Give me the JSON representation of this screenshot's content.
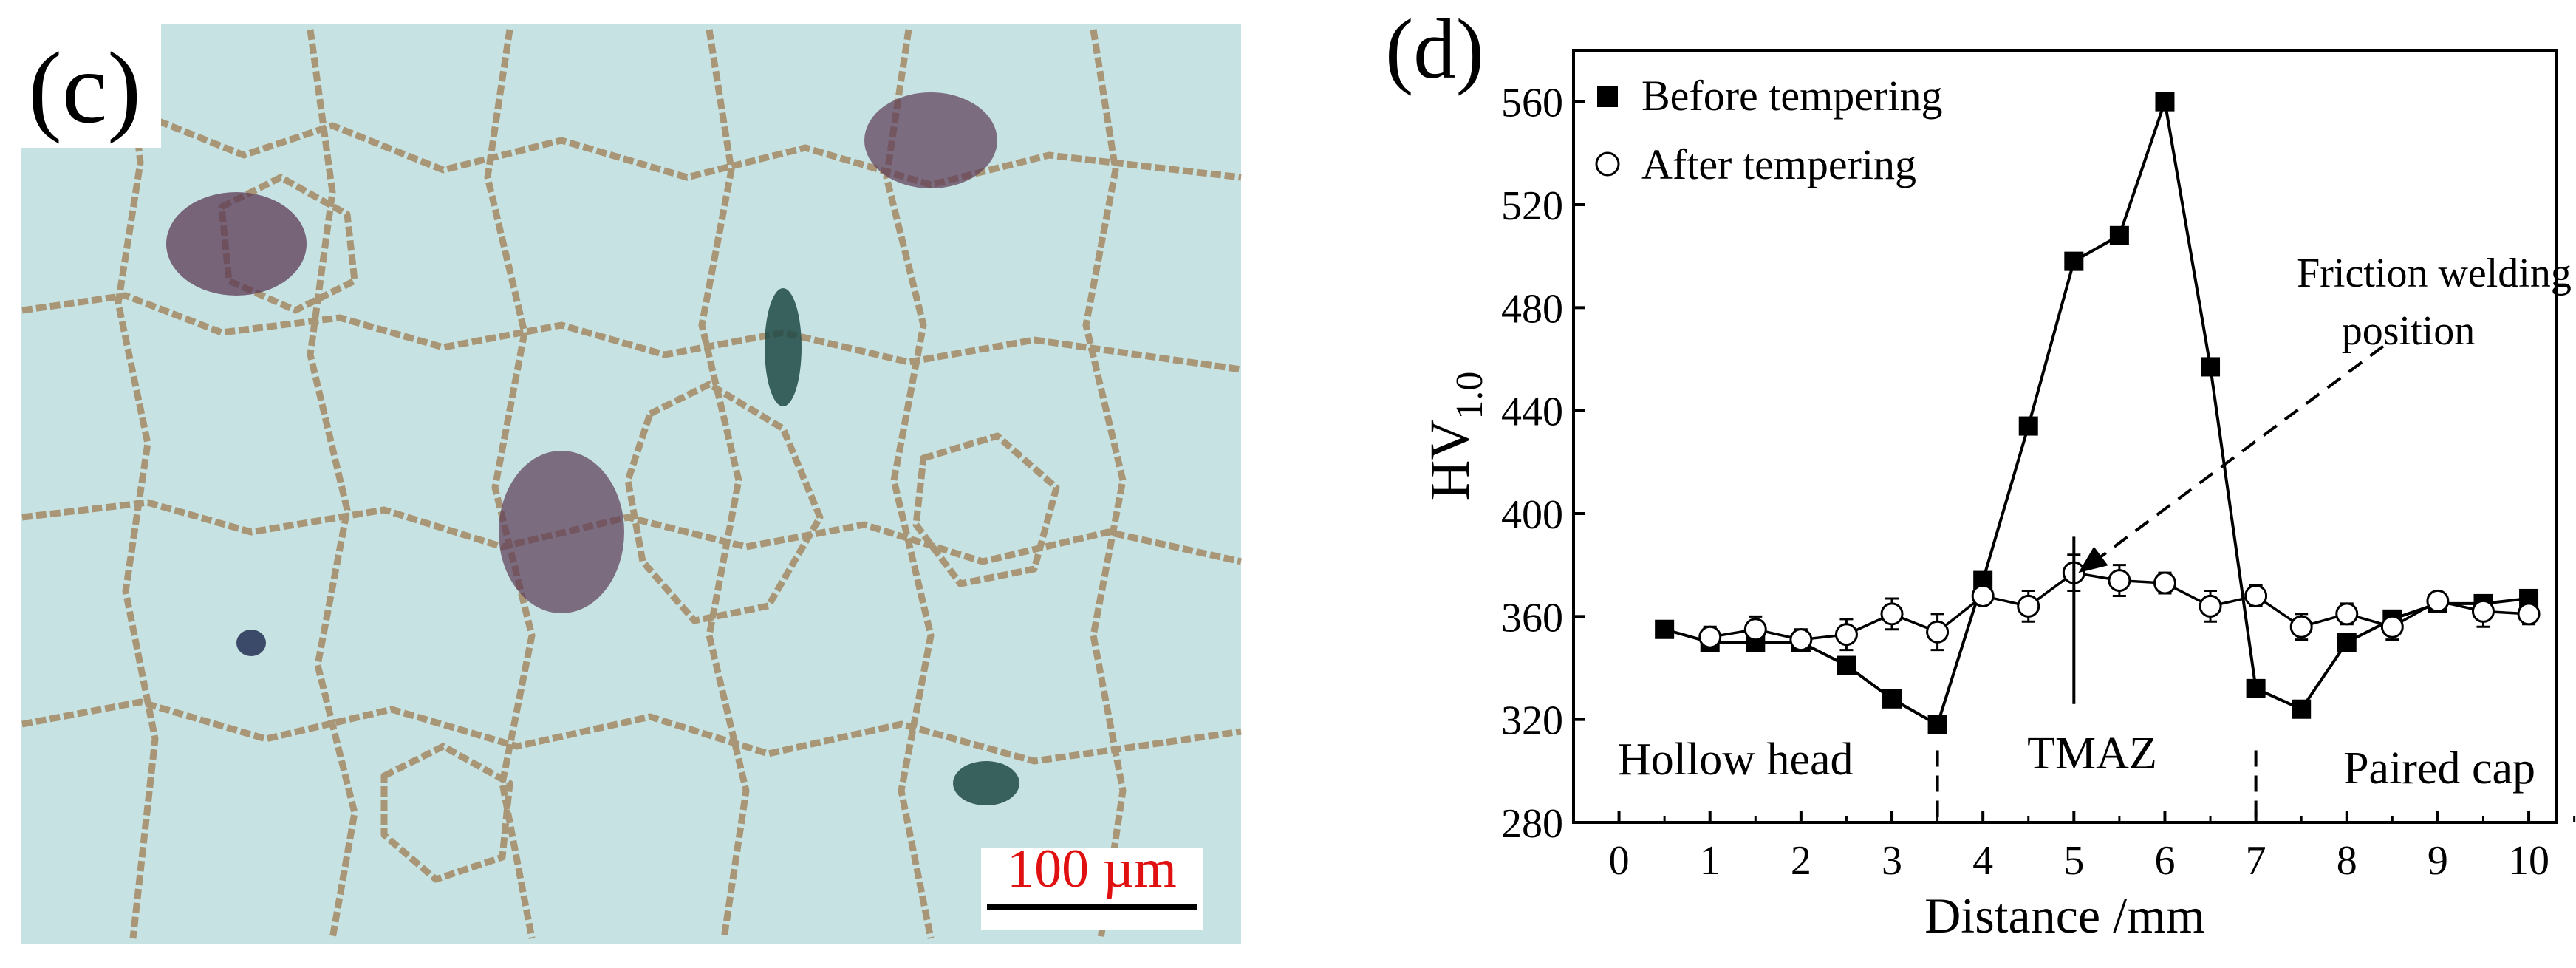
{
  "micrograph": {
    "panel_label": "(c)",
    "scale_bar_label": "100 µm",
    "colors": {
      "matrix": "#c6e2e2",
      "boundary": "#a89676",
      "scale_text": "#e01010"
    }
  },
  "chart_data": {
    "panel_label": "(d)",
    "type": "line",
    "xlabel": "Distance /mm",
    "ylabel_main": "HV",
    "ylabel_sub": "1.0",
    "xlim": [
      -0.5,
      10.3
    ],
    "ylim": [
      280,
      580
    ],
    "xticks": [
      0,
      1,
      2,
      3,
      4,
      5,
      6,
      7,
      8,
      9,
      10
    ],
    "yticks": [
      280,
      320,
      360,
      400,
      440,
      480,
      520,
      560
    ],
    "legend": "top-left",
    "series": [
      {
        "name": "Before tempering",
        "marker": "filled-square",
        "x": [
          0.5,
          1,
          1.5,
          2,
          2.5,
          3,
          3.5,
          4,
          4.5,
          5,
          5.5,
          6,
          6.5,
          7,
          7.5,
          8,
          8.5,
          9,
          9.5,
          10
        ],
        "y": [
          355,
          350,
          350,
          350,
          341,
          328,
          318,
          374,
          434,
          498,
          508,
          560,
          457,
          332,
          324,
          350,
          359,
          365,
          365,
          367
        ]
      },
      {
        "name": "After tempering",
        "marker": "open-circle",
        "x": [
          1,
          1.5,
          2,
          2.5,
          3,
          3.5,
          4,
          4.5,
          5,
          5.5,
          6,
          6.5,
          7,
          7.5,
          8,
          8.5,
          9,
          9.5,
          10
        ],
        "y": [
          352,
          355,
          351,
          353,
          361,
          354,
          368,
          364,
          377,
          374,
          373,
          364,
          368,
          356,
          361,
          356,
          366,
          362,
          361
        ],
        "error": [
          4,
          5,
          4,
          6,
          6,
          7,
          3,
          6,
          7,
          6,
          4,
          6,
          4,
          5,
          4,
          5,
          3,
          6,
          4
        ]
      }
    ],
    "annotations": {
      "friction_label_line1": "Friction welding",
      "friction_label_line2": "position",
      "region_left": "Hollow head",
      "region_middle": "TMAZ",
      "region_right": "Paired cap"
    },
    "boundaries_x": [
      3.5,
      7
    ]
  }
}
